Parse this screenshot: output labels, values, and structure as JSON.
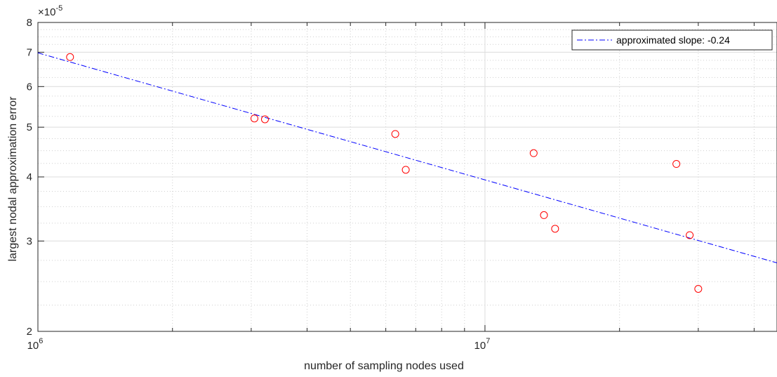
{
  "chart_data": {
    "type": "scatter",
    "xlabel": "number of sampling nodes used",
    "ylabel": "largest nodal approximation error",
    "xscale": "log",
    "yscale": "log",
    "xlim": [
      1000000,
      45000000
    ],
    "ylim": [
      2e-05,
      8e-05
    ],
    "y_multiplier_label": "×10",
    "y_multiplier_exponent": "-5",
    "x_tick_labels": [
      {
        "base": "10",
        "exp": "6",
        "value": 1000000
      },
      {
        "base": "10",
        "exp": "7",
        "value": 10000000
      }
    ],
    "y_tick_labels": [
      {
        "label": "2",
        "value": 2e-05
      },
      {
        "label": "3",
        "value": 3e-05
      },
      {
        "label": "4",
        "value": 4e-05
      },
      {
        "label": "5",
        "value": 5e-05
      },
      {
        "label": "6",
        "value": 6e-05
      },
      {
        "label": "7",
        "value": 7e-05
      },
      {
        "label": "8",
        "value": 8e-05
      }
    ],
    "grid": true,
    "minor_grid": true,
    "legend_position": "top-right",
    "points": {
      "color": "#ff0000",
      "marker": "circle",
      "x": [
        1180000,
        3050000,
        3220000,
        6300000,
        6650000,
        12850000,
        13550000,
        14350000,
        26800000,
        28700000,
        30000000
      ],
      "y": [
        6.85e-05,
        5.2e-05,
        5.18e-05,
        4.85e-05,
        4.13e-05,
        4.45e-05,
        3.37e-05,
        3.17e-05,
        4.24e-05,
        3.08e-05,
        2.42e-05
      ]
    },
    "fit": {
      "name": "approximated slope: -0.24",
      "color": "#0000ff",
      "style": "dash-dot",
      "x": [
        1000000,
        45000000
      ],
      "y": [
        6.98e-05,
        2.72e-05
      ]
    }
  }
}
